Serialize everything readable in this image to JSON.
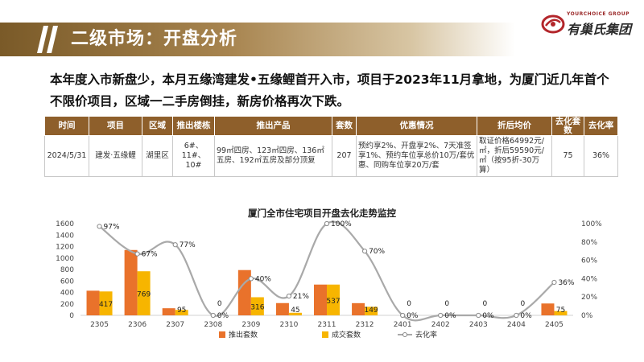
{
  "header": {
    "title": "二级市场：开盘分析"
  },
  "logo": {
    "en": "YOURCHOICE GROUP",
    "cn": "有巢氏集团"
  },
  "summary": "本年度入市新盘少，本月五缘湾建发•五缘鲤首开入市，项目于2023年11月拿地，为厦门近几年首个不限价项目，区域一二手房倒挂，新房价格再次下跌。",
  "table": {
    "headers": [
      "时间",
      "项目",
      "区域",
      "推出楼栋",
      "推出产品",
      "套数",
      "优惠情况",
      "折后均价",
      "去化套数",
      "去化率"
    ],
    "row": {
      "date": "2024/5/31",
      "project": "建发·五缘鲤",
      "area": "湖里区",
      "buildings": "6#、11#、10#",
      "products": "99㎡四房、123㎡四房、136㎡五房、192㎡五房及部分顶复",
      "units": "207",
      "discount": "预约享2%、开盘享2%、7天准签享1%、预约车位享总价10万/套优惠、同购车位享20万/套",
      "price": "取证价格64992元/㎡，折后59590元/㎡（按95折-30万算）",
      "sold": "75",
      "rate": "36%"
    }
  },
  "chart_data": {
    "type": "bar",
    "title": "厦门全市住宅项目开盘去化走势监控",
    "categories": [
      "2305",
      "2306",
      "2307",
      "2308",
      "2309",
      "2310",
      "2311",
      "2312",
      "2401",
      "2402",
      "2403",
      "2404",
      "2405"
    ],
    "series": [
      {
        "name": "推出套数",
        "type": "bar",
        "color": "#e9722b",
        "values": [
          430,
          1140,
          124,
          0,
          790,
          214,
          537,
          213,
          0,
          0,
          0,
          0,
          207
        ]
      },
      {
        "name": "成交套数",
        "type": "bar",
        "color": "#f7b500",
        "values": [
          417,
          769,
          95,
          0,
          316,
          45,
          537,
          149,
          0,
          0,
          0,
          0,
          75
        ]
      },
      {
        "name": "去化率",
        "type": "line",
        "color": "#a9a9a9",
        "axis": "right",
        "values": [
          97,
          67,
          77,
          0,
          40,
          21,
          100,
          70,
          0,
          0,
          0,
          0,
          36
        ]
      }
    ],
    "left_axis": {
      "ylim": [
        0,
        1600
      ],
      "ticks": [
        "0",
        "200",
        "400",
        "600",
        "800",
        "1000",
        "1200",
        "1400",
        "1600"
      ]
    },
    "right_axis": {
      "ylim": [
        0,
        100
      ],
      "ticks": [
        "0%",
        "20%",
        "40%",
        "60%",
        "80%",
        "100%"
      ]
    },
    "legend_position": "bottom",
    "grid": false
  }
}
